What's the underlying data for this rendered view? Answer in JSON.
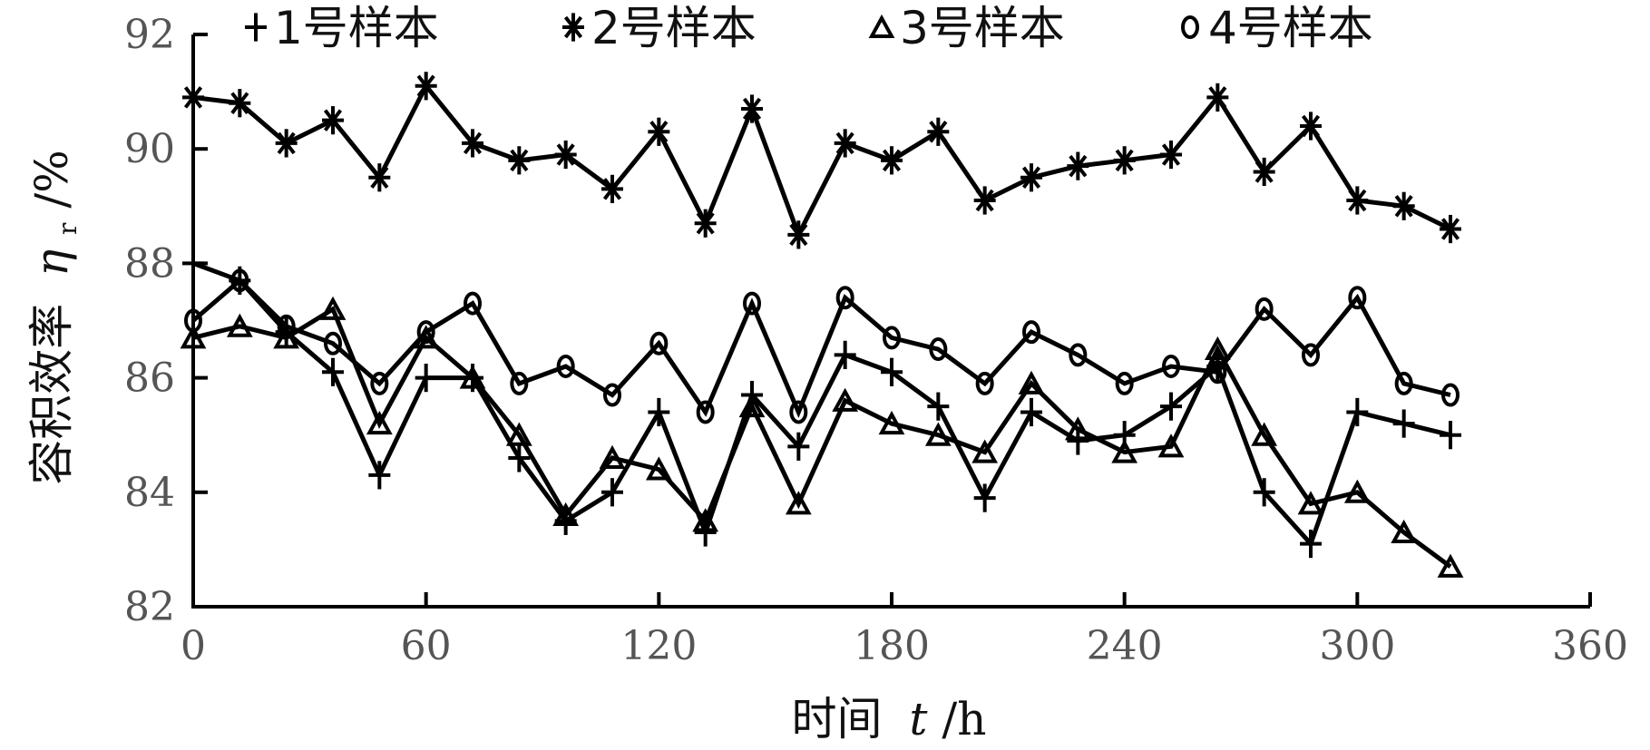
{
  "chart_data": {
    "type": "line",
    "xlabel_prefix": "时间",
    "xlabel_var": "t",
    "xlabel_unit": "/h",
    "ylabel_prefix": "容积效率",
    "ylabel_var": "η",
    "ylabel_sub": "r",
    "ylabel_unit": "/%",
    "xlim": [
      0,
      360
    ],
    "ylim": [
      82,
      92
    ],
    "xticks": [
      0,
      60,
      120,
      180,
      240,
      300,
      360
    ],
    "yticks": [
      82,
      84,
      86,
      88,
      90,
      92
    ],
    "grid": false,
    "legend_position": "top",
    "x": [
      0,
      12,
      24,
      36,
      48,
      60,
      72,
      84,
      96,
      108,
      120,
      132,
      144,
      156,
      168,
      180,
      192,
      204,
      216,
      228,
      240,
      252,
      264,
      276,
      288,
      300,
      312,
      324
    ],
    "series": [
      {
        "name": "1号样本",
        "marker": "plus",
        "legend_symbol": "+",
        "values": [
          88.0,
          87.7,
          86.8,
          86.1,
          84.3,
          86.0,
          86.0,
          84.6,
          83.5,
          84.0,
          85.4,
          83.3,
          85.7,
          84.8,
          86.4,
          86.1,
          85.5,
          83.9,
          85.4,
          84.9,
          85.0,
          85.5,
          86.2,
          84.0,
          83.1,
          85.4,
          85.2,
          85.0
        ]
      },
      {
        "name": "2号样本",
        "marker": "asterisk",
        "legend_symbol": "*",
        "values": [
          90.9,
          90.8,
          90.1,
          90.5,
          89.5,
          91.1,
          90.1,
          89.8,
          89.9,
          89.3,
          90.3,
          88.7,
          90.7,
          88.5,
          90.1,
          89.8,
          90.3,
          89.1,
          89.5,
          89.7,
          89.8,
          89.9,
          90.9,
          89.6,
          90.4,
          89.1,
          89.0,
          88.6
        ]
      },
      {
        "name": "3号样本",
        "marker": "triangle",
        "legend_symbol": "Δ",
        "values": [
          86.7,
          86.9,
          86.7,
          87.2,
          85.2,
          86.7,
          86.0,
          85.0,
          83.6,
          84.6,
          84.4,
          83.5,
          85.5,
          83.8,
          85.6,
          85.2,
          85.0,
          84.7,
          85.9,
          85.1,
          84.7,
          84.8,
          86.5,
          85.0,
          83.8,
          84.0,
          83.3,
          82.7
        ]
      },
      {
        "name": "4号样本",
        "marker": "circle",
        "legend_symbol": "o",
        "values": [
          87.0,
          87.7,
          86.9,
          86.6,
          85.9,
          86.8,
          87.3,
          85.9,
          86.2,
          85.7,
          86.6,
          85.4,
          87.3,
          85.4,
          87.4,
          86.7,
          86.5,
          85.9,
          86.8,
          86.4,
          85.9,
          86.2,
          86.1,
          87.2,
          86.4,
          87.4,
          85.9,
          85.7
        ]
      }
    ]
  }
}
